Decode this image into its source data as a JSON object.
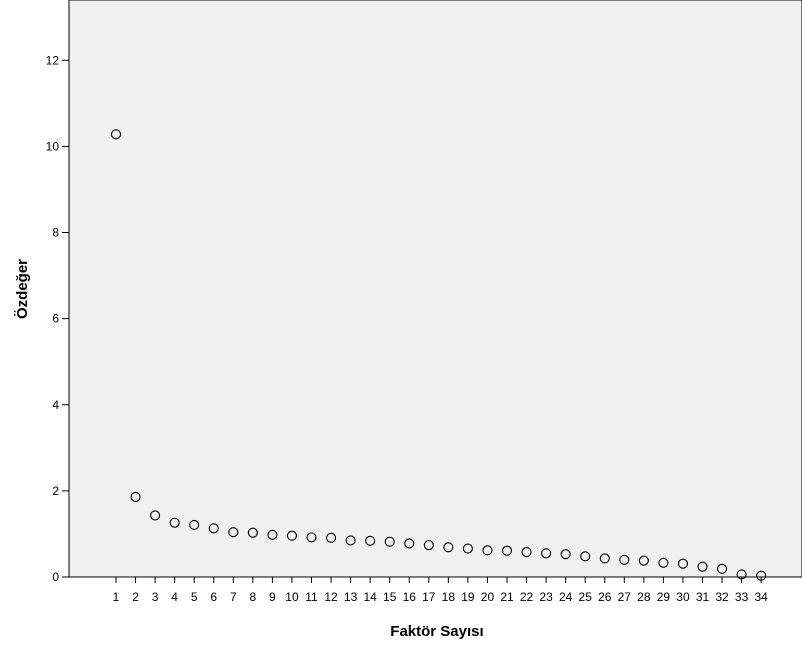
{
  "chart_data": {
    "type": "scatter",
    "title": "",
    "xlabel": "Faktör Sayısı",
    "ylabel": "Özdeğer",
    "x": [
      1,
      2,
      3,
      4,
      5,
      6,
      7,
      8,
      9,
      10,
      11,
      12,
      13,
      14,
      15,
      16,
      17,
      18,
      19,
      20,
      21,
      22,
      23,
      24,
      25,
      26,
      27,
      28,
      29,
      30,
      31,
      32,
      33,
      34
    ],
    "values": [
      10.28,
      1.86,
      1.43,
      1.26,
      1.21,
      1.13,
      1.04,
      1.03,
      0.98,
      0.96,
      0.92,
      0.91,
      0.85,
      0.84,
      0.82,
      0.78,
      0.74,
      0.69,
      0.66,
      0.62,
      0.61,
      0.58,
      0.55,
      0.53,
      0.48,
      0.43,
      0.4,
      0.38,
      0.33,
      0.31,
      0.24,
      0.19,
      0.06,
      0.03
    ],
    "xticks": [
      "1",
      "2",
      "3",
      "4",
      "5",
      "6",
      "7",
      "8",
      "9",
      "10",
      "11",
      "12",
      "13",
      "14",
      "15",
      "16",
      "17",
      "18",
      "19",
      "20",
      "21",
      "22",
      "23",
      "24",
      "25",
      "26",
      "27",
      "28",
      "29",
      "30",
      "31",
      "32",
      "33",
      "34"
    ],
    "yticks": [
      0,
      2,
      4,
      6,
      8,
      10,
      12
    ],
    "ylim": [
      0,
      13.4
    ],
    "grid": false,
    "marker": "open-circle",
    "colors": {
      "plot_background": "#f0f0f0",
      "marker_stroke": "#000000",
      "axis": "#000000"
    }
  }
}
